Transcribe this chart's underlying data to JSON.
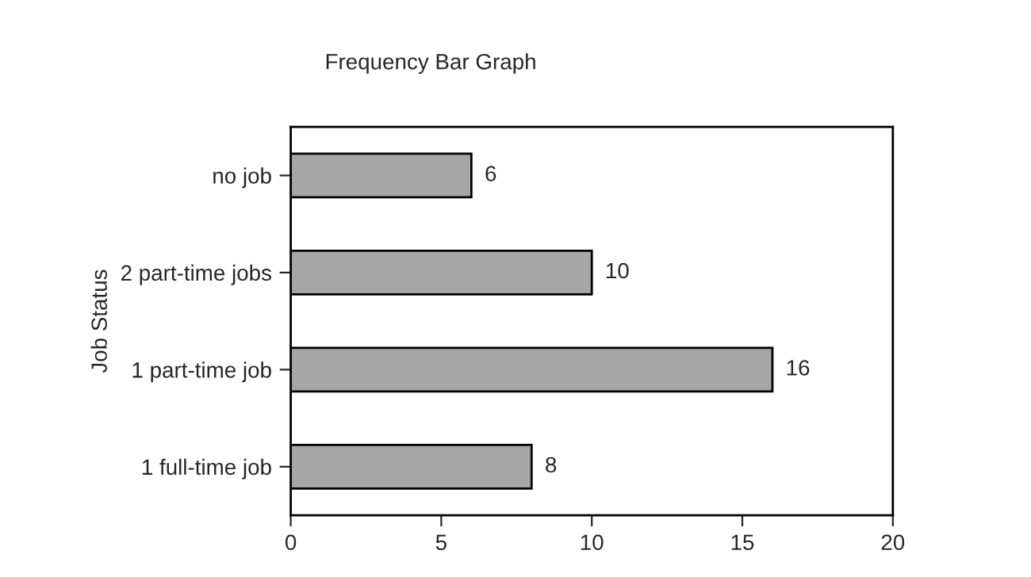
{
  "chart_data": {
    "type": "bar",
    "orientation": "horizontal",
    "title": "Frequency Bar Graph",
    "ylabel": "Job Status",
    "categories": [
      "no job",
      "2 part-time jobs",
      "1 part-time job",
      "1 full-time job"
    ],
    "values": [
      6,
      10,
      16,
      8
    ],
    "color": "#a6a6a6",
    "xlim": [
      0,
      20
    ],
    "xticks": [
      0,
      5,
      10,
      15,
      20
    ],
    "data_labels": true,
    "grid": false
  }
}
